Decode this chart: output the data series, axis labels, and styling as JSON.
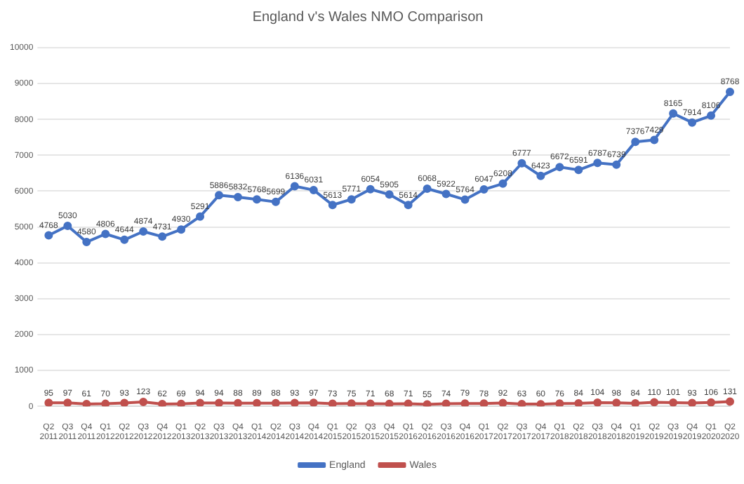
{
  "chart_data": {
    "type": "line",
    "title": "England v's Wales NMO Comparison",
    "categories": [
      "Q2 2011",
      "Q3 2011",
      "Q4 2011",
      "Q1 2012",
      "Q2 2012",
      "Q3 2012",
      "Q4 2012",
      "Q1 2013",
      "Q2 2013",
      "Q3 2013",
      "Q4 2013",
      "Q1 2014",
      "Q2 2014",
      "Q3 2014",
      "Q4 2014",
      "Q1 2015",
      "Q2 2015",
      "Q3 2015",
      "Q4 2015",
      "Q1 2016",
      "Q2 2016",
      "Q3 2016",
      "Q4 2016",
      "Q1 2017",
      "Q2 2017",
      "Q3 2017",
      "Q4 2017",
      "Q1 2018",
      "Q2 2018",
      "Q3 2018",
      "Q4 2018",
      "Q1 2019",
      "Q2 2019",
      "Q3 2019",
      "Q4 2019",
      "Q1 2020",
      "Q2 2020"
    ],
    "series": [
      {
        "name": "England",
        "color": "#4472c4",
        "values": [
          4768,
          5030,
          4580,
          4806,
          4644,
          4874,
          4731,
          4930,
          5291,
          5886,
          5832,
          5768,
          5699,
          6136,
          6031,
          5613,
          5771,
          6054,
          5905,
          5614,
          6068,
          5922,
          5764,
          6047,
          6208,
          6777,
          6423,
          6672,
          6591,
          6787,
          6739,
          7376,
          7429,
          8165,
          7914,
          8106,
          8768
        ]
      },
      {
        "name": "Wales",
        "color": "#c0504d",
        "values": [
          95,
          97,
          61,
          70,
          93,
          123,
          62,
          69,
          94,
          94,
          88,
          89,
          88,
          93,
          97,
          73,
          75,
          71,
          68,
          71,
          55,
          74,
          79,
          78,
          92,
          63,
          60,
          76,
          84,
          104,
          98,
          84,
          110,
          101,
          93,
          106,
          131
        ]
      }
    ],
    "ylim": [
      0,
      10000
    ],
    "yticks": [
      0,
      1000,
      2000,
      3000,
      4000,
      5000,
      6000,
      7000,
      8000,
      9000,
      10000
    ],
    "grid": "y",
    "legend": "bottom",
    "marker": "circle",
    "line_style": "solid",
    "data_labels": true
  }
}
